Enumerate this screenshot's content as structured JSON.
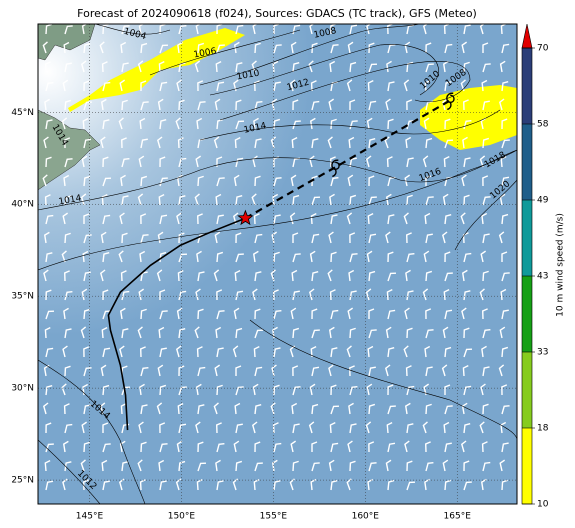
{
  "map": {
    "title": "Forecast of 2024090618 (f024), Sources: GDACS (TC track), GFS (Meteo)",
    "xlim": [
      142.2,
      168.25
    ],
    "ylim": [
      23.7,
      49.8
    ],
    "xticks": [
      {
        "value": 145,
        "label": "145°E"
      },
      {
        "value": 150,
        "label": "150°E"
      },
      {
        "value": 155,
        "label": "155°E"
      },
      {
        "value": 160,
        "label": "160°E"
      },
      {
        "value": 165,
        "label": "165°E"
      }
    ],
    "yticks": [
      {
        "value": 25,
        "label": "25°N"
      },
      {
        "value": 30,
        "label": "30°N"
      },
      {
        "value": 35,
        "label": "35°N"
      },
      {
        "value": 40,
        "label": "40°N"
      },
      {
        "value": 45,
        "label": "45°N"
      }
    ],
    "observed_track": {
      "lon": [
        147.07,
        146.96,
        146.68,
        146.14,
        146.03,
        146.68,
        148.32,
        149.95,
        151.58,
        153.48
      ],
      "lat": [
        27.72,
        29.62,
        31.25,
        33.15,
        33.97,
        35.22,
        36.68,
        37.77,
        38.48,
        39.24
      ]
    },
    "forecast_track": {
      "lon": [
        153.48,
        158.37,
        164.62
      ],
      "lat": [
        39.24,
        42.01,
        45.65
      ]
    },
    "isobar_labels": [
      1004,
      1006,
      1008,
      1010,
      1012,
      1014,
      1010,
      1008,
      1016,
      1018,
      1020,
      1014,
      1014,
      1014,
      1012
    ],
    "colorbar": {
      "label": "10 m wind speed (m/s)",
      "ticks": [
        10,
        18,
        33,
        43,
        49,
        58,
        70
      ],
      "colors": [
        "#ffff00",
        "#86cc1e",
        "#16a016",
        "#0f9a9a",
        "#1f5e8a",
        "#2b3e78"
      ],
      "extend_color": "#e00000"
    }
  }
}
